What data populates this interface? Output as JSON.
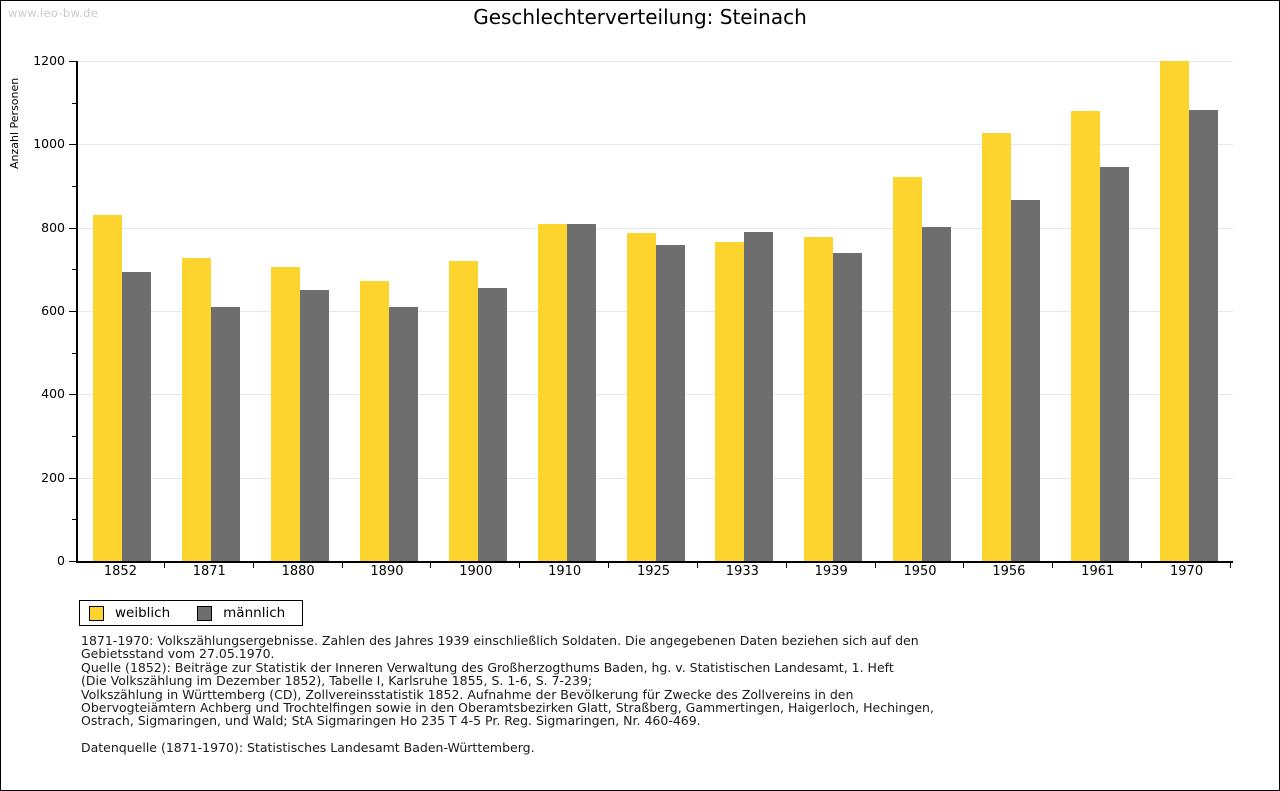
{
  "watermark": "www.leo-bw.de",
  "header": {
    "title": "Geschlechterverteilung: Steinach"
  },
  "chart_data": {
    "type": "bar",
    "title": "Geschlechterverteilung: Steinach",
    "xlabel": "",
    "ylabel": "Anzahl Personen",
    "categories": [
      "1852",
      "1871",
      "1880",
      "1890",
      "1900",
      "1910",
      "1925",
      "1933",
      "1939",
      "1950",
      "1956",
      "1961",
      "1970"
    ],
    "series": [
      {
        "name": "weiblich",
        "color": "#fcd42d",
        "values": [
          830,
          728,
          706,
          671,
          721,
          809,
          788,
          766,
          777,
          922,
          1028,
          1080,
          1200
        ]
      },
      {
        "name": "männlich",
        "color": "#6e6e6e",
        "values": [
          693,
          610,
          650,
          609,
          655,
          808,
          759,
          789,
          740,
          801,
          866,
          946,
          1083
        ]
      }
    ],
    "ylim": [
      0,
      1200
    ],
    "ytick_step": 200,
    "ytick_labels": [
      "0",
      "200",
      "400",
      "600",
      "800",
      "1000",
      "1200"
    ],
    "grid": true,
    "gridline_color": "#e8e8e8",
    "legend_position": "bottom-left"
  },
  "footnotes": {
    "source_lines": [
      "1871-1970: Volkszählungsergebnisse. Zahlen des Jahres 1939 einschließlich Soldaten. Die angegebenen Daten beziehen sich auf den",
      "Gebietsstand vom 27.05.1970.",
      "Quelle (1852): Beiträge zur Statistik der Inneren Verwaltung des Großherzogthums Baden, hg. v. Statistischen Landesamt, 1. Heft",
      "(Die Volkszählung im Dezember 1852), Tabelle I, Karlsruhe 1855, S. 1-6, S. 7-239;",
      "Volkszählung in Württemberg (CD), Zollvereinsstatistik 1852. Aufnahme der Bevölkerung für Zwecke des Zollvereins in den",
      "Obervogteiämtern Achberg und Trochtelfingen sowie in den Oberamtsbezirken Glatt, Straßberg, Gammertingen, Haigerloch, Hechingen,",
      "Ostrach, Sigmaringen, und Wald; StA Sigmaringen Ho 235 T 4-5 Pr. Reg. Sigmaringen, Nr. 460-469."
    ],
    "datasource_line": "Datenquelle (1871-1970): Statistisches Landesamt Baden-Württemberg."
  }
}
